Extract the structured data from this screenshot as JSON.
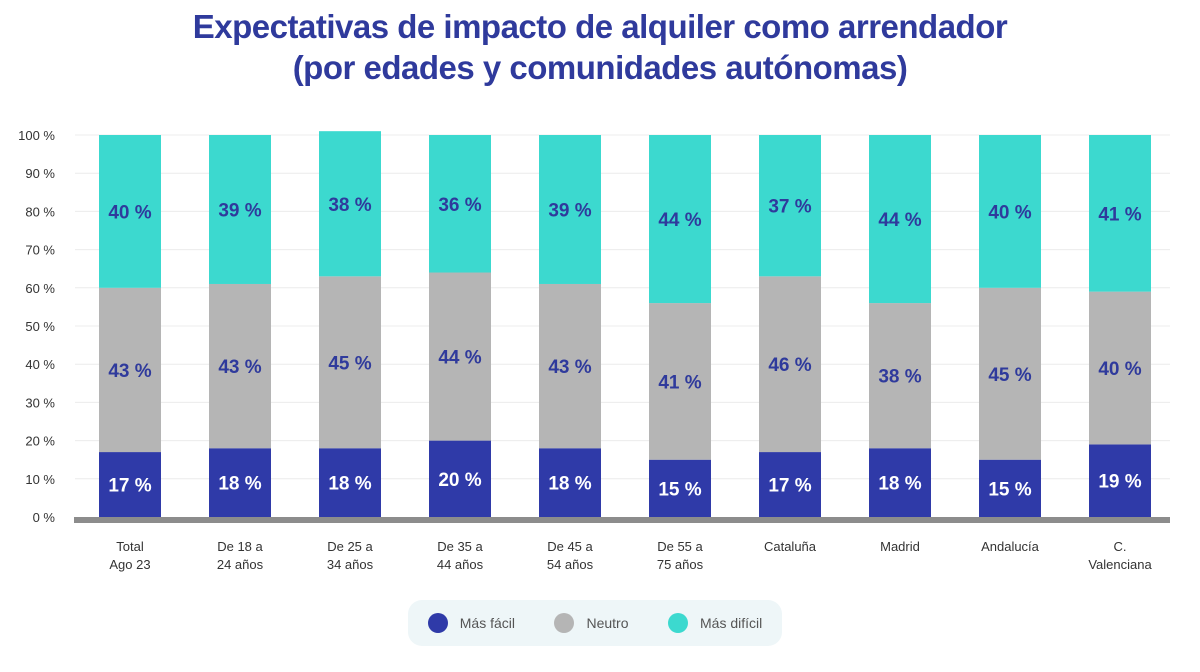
{
  "chart_data": {
    "type": "bar",
    "stacked": true,
    "title": [
      "Expectativas de impacto de alquiler como arrendador",
      "(por edades y comunidades autónomas)"
    ],
    "categories": [
      [
        "Total",
        "Ago 23"
      ],
      [
        "De 18 a",
        "24 años"
      ],
      [
        "De 25 a",
        "34 años"
      ],
      [
        "De 35 a",
        "44 años"
      ],
      [
        "De 45 a",
        "54 años"
      ],
      [
        "De 55 a",
        "75 años"
      ],
      [
        "Cataluña"
      ],
      [
        "Madrid"
      ],
      [
        "Andalucía"
      ],
      [
        "C.",
        "Valenciana"
      ]
    ],
    "series": [
      {
        "name": "Más fácil",
        "color": "#2f3aa8",
        "values": [
          17,
          18,
          18,
          20,
          18,
          15,
          17,
          18,
          15,
          19
        ]
      },
      {
        "name": "Neutro",
        "color": "#b5b5b5",
        "values": [
          43,
          43,
          45,
          44,
          43,
          41,
          46,
          38,
          45,
          40
        ]
      },
      {
        "name": "Más difícil",
        "color": "#3cd9cf",
        "values": [
          40,
          39,
          38,
          36,
          39,
          44,
          37,
          44,
          40,
          41
        ]
      }
    ],
    "ylim": [
      0,
      100
    ],
    "yticks": [
      "0 %",
      "10 %",
      "20 %",
      "30 %",
      "40 %",
      "50 %",
      "60 %",
      "70 %",
      "80 %",
      "90 %",
      "100 %"
    ],
    "grid": true,
    "legend": "bottom",
    "label_suffix": " %"
  }
}
